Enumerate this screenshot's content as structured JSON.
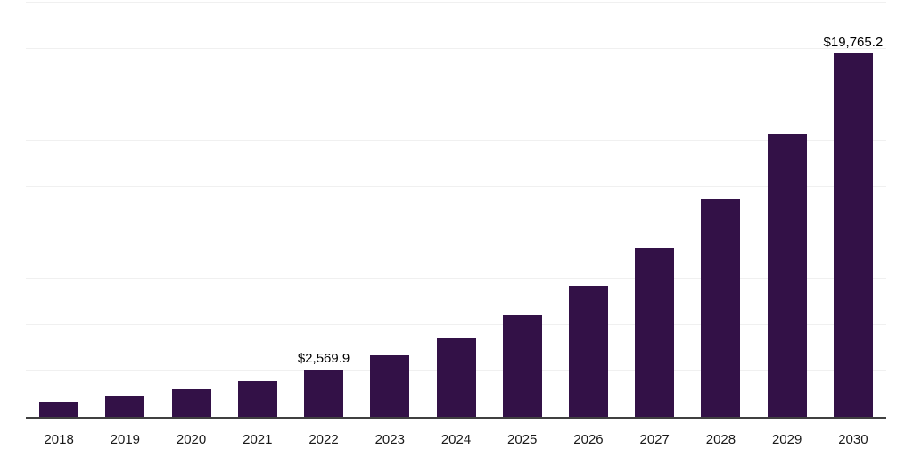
{
  "chart_data": {
    "type": "bar",
    "title": "",
    "xlabel": "",
    "ylabel": "",
    "categories": [
      "2018",
      "2019",
      "2020",
      "2021",
      "2022",
      "2023",
      "2024",
      "2025",
      "2026",
      "2027",
      "2028",
      "2029",
      "2030"
    ],
    "values": [
      800,
      1090,
      1480,
      1950,
      2569.9,
      3320,
      4280,
      5520,
      7130,
      9200,
      11870,
      15320,
      19765.2
    ],
    "value_labels": {
      "2022": "$2,569.9",
      "2030": "$19,765.2"
    },
    "ylim": [
      0,
      22500
    ],
    "gridline_interval": 2500,
    "grid": true,
    "legend_position": "none",
    "colors": {
      "bar": "#331147",
      "gridline": "#f0f0f0",
      "axis_line": "#404040",
      "value_label": "#000000",
      "tick_label": "#1a1a1a",
      "background": "#ffffff"
    }
  }
}
